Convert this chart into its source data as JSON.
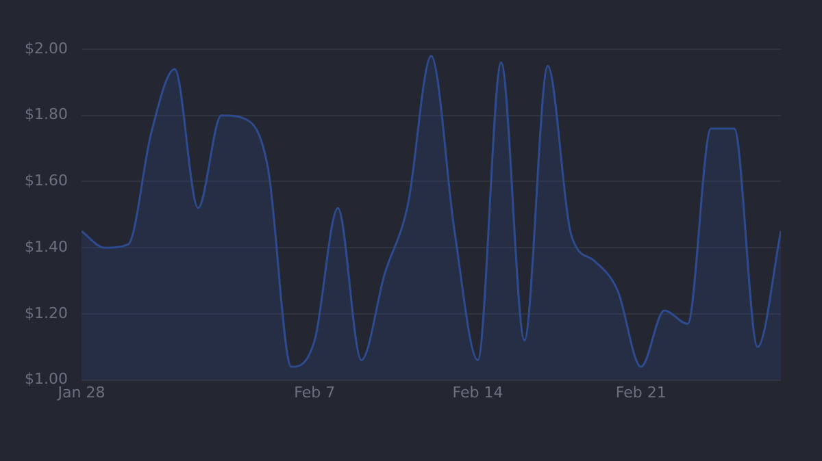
{
  "chart_data": {
    "type": "area",
    "x": [
      "--01-28",
      "--01-29",
      "--01-30",
      "--01-31",
      "--02-01",
      "--02-02",
      "--02-03",
      "--02-04",
      "--02-05",
      "--02-06",
      "--02-07",
      "--02-08",
      "--02-09",
      "--02-10",
      "--02-11",
      "--02-12",
      "--02-13",
      "--02-14",
      "--02-15",
      "--02-16",
      "--02-17",
      "--02-18",
      "--02-19",
      "--02-20",
      "--02-21",
      "--02-22",
      "--02-23",
      "--02-24",
      "--02-25",
      "--02-26",
      "--02-27"
    ],
    "series": [
      {
        "color": "#2d4b8e",
        "values": [
          1.45,
          1.4,
          1.41,
          1.75,
          1.94,
          1.52,
          1.8,
          1.79,
          1.64,
          1.04,
          1.12,
          1.52,
          1.06,
          1.32,
          1.53,
          1.98,
          1.45,
          1.06,
          1.96,
          1.12,
          1.95,
          1.44,
          1.36,
          1.27,
          1.04,
          1.21,
          1.17,
          1.76,
          1.76,
          1.1,
          1.45
        ]
      }
    ],
    "xlim": [
      "--01-28",
      "--02-27"
    ],
    "xticks": [
      {
        "value": "--01-28",
        "label": "Jan 28"
      },
      {
        "value": "--02-07",
        "label": "Feb 7"
      },
      {
        "value": "--02-14",
        "label": "Feb 14"
      },
      {
        "value": "--02-21",
        "label": "Feb 21"
      }
    ],
    "ylim": [
      1,
      2
    ],
    "yticks": [
      {
        "value": 1,
        "label": "$1.00"
      },
      {
        "value": 1.2,
        "label": "$1.20"
      },
      {
        "value": 1.4,
        "label": "$1.40"
      },
      {
        "value": 1.6,
        "label": "$1.60"
      },
      {
        "value": 1.8,
        "label": "$1.80"
      },
      {
        "value": 2,
        "label": "$2.00"
      }
    ],
    "grid": "y",
    "legend": false,
    "marker": "none",
    "line_style": "solid"
  }
}
